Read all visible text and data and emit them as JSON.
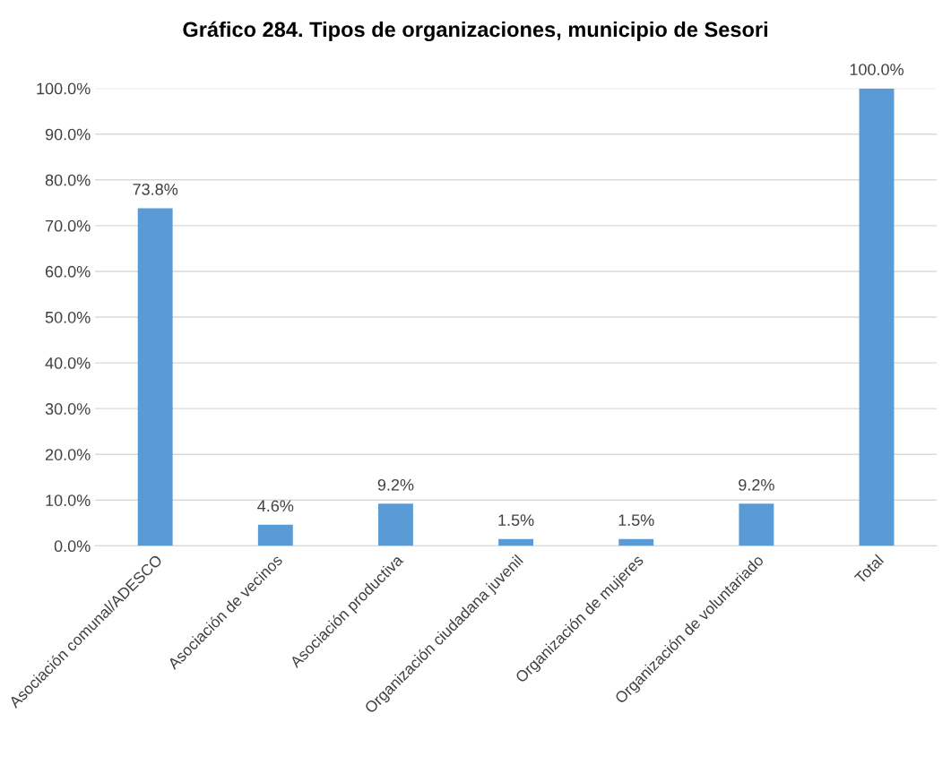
{
  "chart_data": {
    "type": "bar",
    "title": "Gráfico 284. Tipos de organizaciones, municipio de Sesori",
    "categories": [
      "Asociación comunal/ADESCO",
      "Asociación de vecinos",
      "Asociación productiva",
      "Organización ciudadana juvenil",
      "Organización de mujeres",
      "Organización de voluntariado",
      "Total"
    ],
    "values": [
      73.8,
      4.6,
      9.2,
      1.5,
      1.5,
      9.2,
      100.0
    ],
    "value_labels": [
      "73.8%",
      "4.6%",
      "9.2%",
      "1.5%",
      "1.5%",
      "9.2%",
      "100.0%"
    ],
    "color": "#5b9bd5",
    "ylim": [
      0,
      100
    ],
    "yticks": [
      {
        "value": 0,
        "label": "0.0%"
      },
      {
        "value": 10,
        "label": "10.0%"
      },
      {
        "value": 20,
        "label": "20.0%"
      },
      {
        "value": 30,
        "label": "30.0%"
      },
      {
        "value": 40,
        "label": "40.0%"
      },
      {
        "value": 50,
        "label": "50.0%"
      },
      {
        "value": 60,
        "label": "60.0%"
      },
      {
        "value": 70,
        "label": "70.0%"
      },
      {
        "value": 80,
        "label": "80.0%"
      },
      {
        "value": 90,
        "label": "90.0%"
      },
      {
        "value": 100,
        "label": "100.0%"
      }
    ],
    "grid": "y",
    "legend": false
  }
}
